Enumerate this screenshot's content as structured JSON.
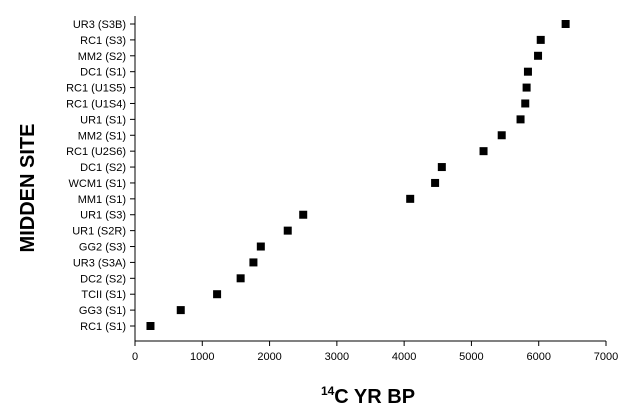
{
  "chart_data": {
    "type": "scatter",
    "title": "",
    "xlabel_superscript": "14",
    "xlabel_main": "C YR BP",
    "ylabel": "MIDDEN SITE",
    "xlim": [
      0,
      7000
    ],
    "xticks": [
      "0",
      "1000",
      "2000",
      "3000",
      "4000",
      "5000",
      "6000",
      "7000"
    ],
    "grid": false,
    "legend": "none",
    "marker": "square",
    "marker_color": "#000000",
    "categories": [
      "RC1 (S1)",
      "GG3 (S1)",
      "TCII (S1)",
      "DC2 (S2)",
      "UR3 (S3A)",
      "GG2 (S3)",
      "UR1 (S2R)",
      "UR1 (S3)",
      "MM1 (S1)",
      "WCM1 (S1)",
      "DC1 (S2)",
      "RC1 (U2S6)",
      "MM2 (S1)",
      "UR1 (S1)",
      "RC1 (U1S4)",
      "RC1 (U1S5)",
      "DC1 (S1)",
      "MM2 (S2)",
      "RC1 (S3)",
      "UR3 (S3B)"
    ],
    "values": [
      230,
      680,
      1220,
      1570,
      1760,
      1870,
      2270,
      2500,
      4090,
      4460,
      4560,
      5180,
      5450,
      5730,
      5800,
      5820,
      5840,
      5990,
      6030,
      6400
    ]
  }
}
